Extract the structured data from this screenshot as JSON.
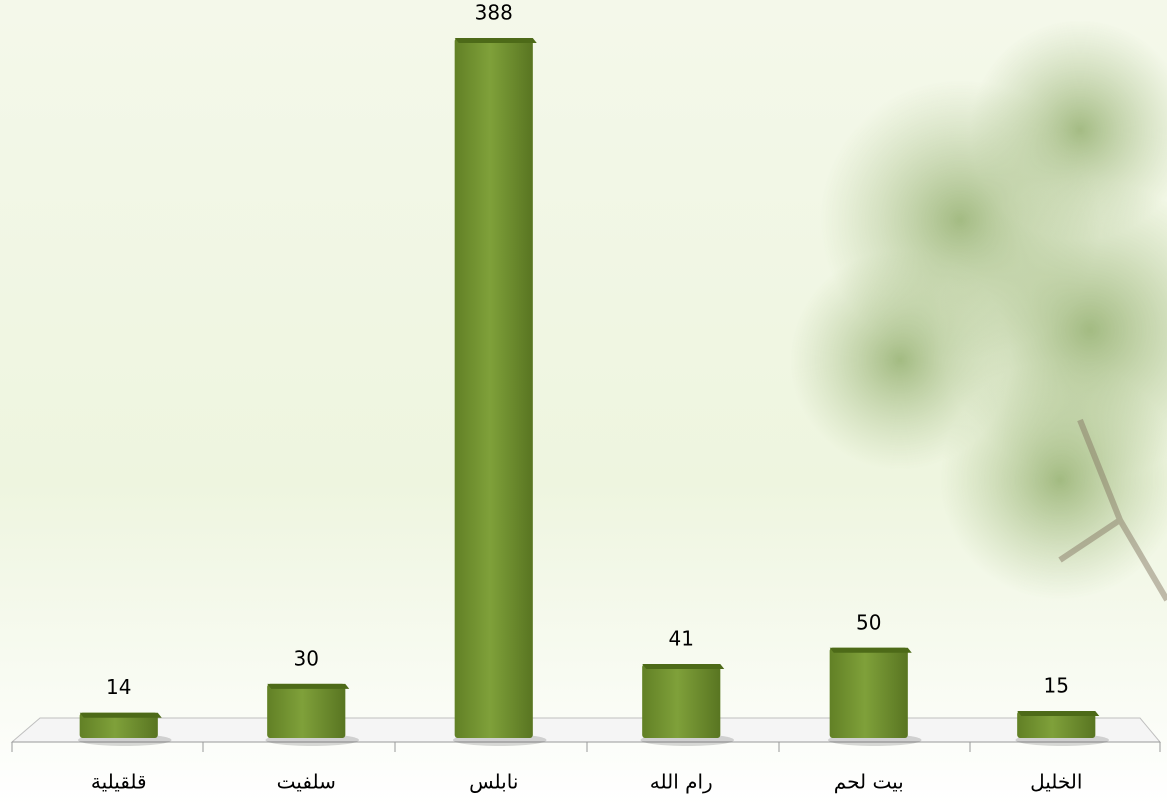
{
  "chart_data": {
    "type": "bar",
    "categories": [
      "قلقيلية",
      "سلفيت",
      "نابلس",
      "رام الله",
      "بيت لحم",
      "الخليل"
    ],
    "values": [
      14,
      30,
      388,
      41,
      50,
      15
    ],
    "color": "#6f8f2e"
  }
}
